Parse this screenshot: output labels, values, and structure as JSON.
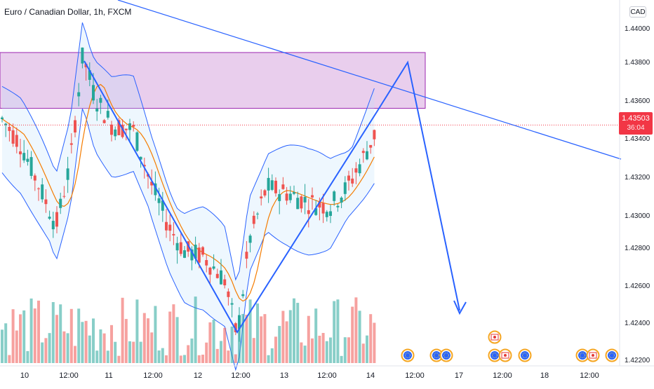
{
  "header": {
    "title": "Euro / Canadian Dollar, 1h, FXCM"
  },
  "price_axis": {
    "currency_label": "CAD",
    "ticks": [
      "1.44000",
      "1.43800",
      "1.43600",
      "1.43400",
      "1.43200",
      "1.43000",
      "1.42800",
      "1.42600",
      "1.42400",
      "1.42200"
    ],
    "current_price": "1.43503",
    "countdown": "36:04"
  },
  "time_axis": {
    "ticks": [
      "10",
      "12:00",
      "11",
      "12:00",
      "12",
      "12:00",
      "13",
      "12:00",
      "14",
      "12:00",
      "17",
      "12:00",
      "18",
      "12:00"
    ]
  },
  "colors": {
    "bull": "#26a69a",
    "bear": "#ef5350",
    "band": "#2962ff",
    "basis": "#f57c00",
    "zone_fill": "#e1bee7",
    "zone_border": "#9c27b0",
    "drawing": "#2962ff",
    "price_label": "#f23645"
  },
  "chart_data": {
    "type": "candlestick",
    "symbol": "EURCAD",
    "timeframe": "1h",
    "ylim": [
      1.422,
      1.441
    ],
    "resistance_zone": [
      1.4359,
      1.4388
    ],
    "last_price": 1.43503,
    "pattern_points": [
      1.4387,
      1.4238,
      1.4358,
      1.4382,
      1.4249
    ],
    "trendline": [
      1.4428,
      1.433
    ],
    "event_icons": [
      "eu-flag-icon",
      "eu-flag-icon",
      "eu-flag-icon",
      "eu-flag-icon",
      "canada-flag-icon",
      "eu-flag-icon",
      "canada-flag-icon",
      "eu-flag-icon",
      "eu-flag-icon",
      "canada-flag-icon",
      "eu-flag-icon"
    ]
  }
}
